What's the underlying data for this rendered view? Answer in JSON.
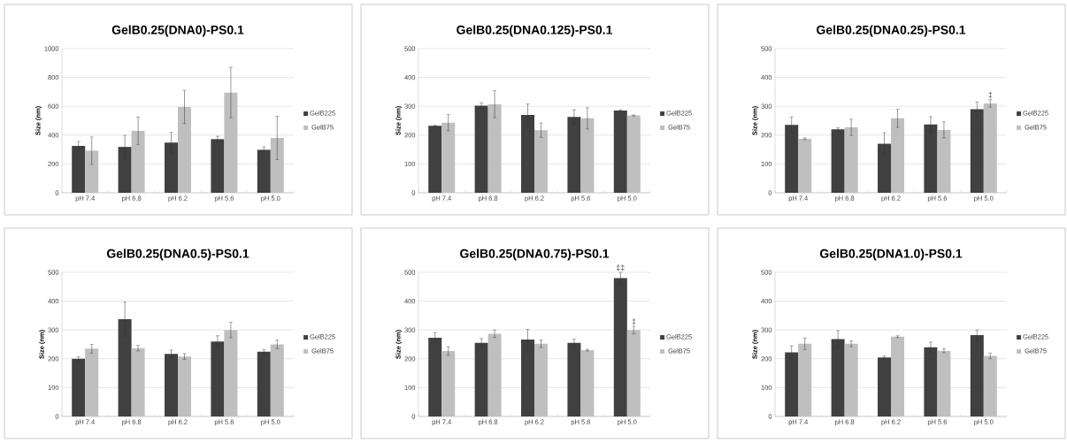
{
  "chart_data": [
    {
      "type": "bar",
      "title": "GelB0.25(DNA0)-PS0.1",
      "ylabel": "Size (nm)",
      "categories": [
        "pH 7.4",
        "pH 6.8",
        "pH 6.2",
        "pH 5.6",
        "pH 5.0"
      ],
      "ylim": [
        0,
        1000
      ],
      "yticks": [
        0,
        200,
        400,
        600,
        800,
        1000
      ],
      "grid": "y",
      "legend": "right",
      "series": [
        {
          "name": "GelB225",
          "color": "#404040",
          "values": [
            325,
            318,
            348,
            372,
            298
          ],
          "errors": [
            30,
            80,
            70,
            20,
            20
          ]
        },
        {
          "name": "GelB75",
          "color": "#bfbfbf",
          "values": [
            292,
            430,
            595,
            695,
            380
          ],
          "errors": [
            95,
            95,
            115,
            175,
            150
          ]
        }
      ]
    },
    {
      "type": "bar",
      "title": "GelB0.25(DNA0.125)-PS0.1",
      "ylabel": "Size (nm)",
      "categories": [
        "pH 7.4",
        "pH 6.8",
        "pH 6.2",
        "pH 5.6",
        "pH 5.0"
      ],
      "ylim": [
        0,
        500
      ],
      "yticks": [
        0,
        100,
        200,
        300,
        400,
        500
      ],
      "grid": "y",
      "legend": "right",
      "series": [
        {
          "name": "GelB225",
          "color": "#404040",
          "values": [
            232,
            302,
            270,
            263,
            285
          ],
          "errors": [
            2,
            10,
            38,
            25,
            3
          ]
        },
        {
          "name": "GelB75",
          "color": "#bfbfbf",
          "values": [
            243,
            307,
            217,
            258,
            268
          ],
          "errors": [
            28,
            47,
            25,
            37,
            2
          ]
        }
      ]
    },
    {
      "type": "bar",
      "title": "GelB0.25(DNA0.25)-PS0.1",
      "ylabel": "Size (nm)",
      "categories": [
        "pH 7.4",
        "pH 6.8",
        "pH 6.2",
        "pH 5.6",
        "pH 5.0"
      ],
      "ylim": [
        0,
        500
      ],
      "yticks": [
        0,
        100,
        200,
        300,
        400,
        500
      ],
      "grid": "y",
      "legend": "right",
      "series": [
        {
          "name": "GelB225",
          "color": "#404040",
          "values": [
            235,
            220,
            170,
            237,
            290
          ],
          "errors": [
            28,
            5,
            38,
            27,
            25
          ]
        },
        {
          "name": "GelB75",
          "color": "#bfbfbf",
          "values": [
            187,
            227,
            258,
            218,
            310
          ],
          "errors": [
            3,
            28,
            31,
            28,
            13
          ]
        }
      ],
      "annotations": [
        {
          "text": "‡",
          "x": "pH 5.0",
          "y": 310
        }
      ]
    },
    {
      "type": "bar",
      "title": "GelB0.25(DNA0.5)-PS0.1",
      "ylabel": "Size (nm)",
      "categories": [
        "pH 7.4",
        "pH 6.8",
        "pH 6.2",
        "pH 5.6",
        "pH 5.0"
      ],
      "ylim": [
        0,
        500
      ],
      "yticks": [
        0,
        100,
        200,
        300,
        400,
        500
      ],
      "grid": "y",
      "legend": "right",
      "series": [
        {
          "name": "GelB225",
          "color": "#404040",
          "values": [
            200,
            337,
            217,
            260,
            225
          ],
          "errors": [
            7,
            60,
            13,
            20,
            7
          ]
        },
        {
          "name": "GelB75",
          "color": "#bfbfbf",
          "values": [
            235,
            237,
            208,
            300,
            250
          ],
          "errors": [
            15,
            10,
            10,
            27,
            15
          ]
        }
      ]
    },
    {
      "type": "bar",
      "title": "GelB0.25(DNA0.75)-PS0.1",
      "ylabel": "Size (nm)",
      "categories": [
        "pH 7.4",
        "pH 6.8",
        "pH 6.2",
        "pH 5.6",
        "pH 5.0"
      ],
      "ylim": [
        0,
        500
      ],
      "yticks": [
        0,
        100,
        200,
        300,
        400,
        500
      ],
      "grid": "y",
      "legend": "right",
      "series": [
        {
          "name": "GelB225",
          "color": "#404040",
          "values": [
            273,
            255,
            267,
            255,
            480
          ],
          "errors": [
            18,
            15,
            35,
            13,
            20
          ]
        },
        {
          "name": "GelB75",
          "color": "#bfbfbf",
          "values": [
            227,
            287,
            252,
            230,
            300
          ],
          "errors": [
            15,
            13,
            13,
            3,
            13
          ]
        }
      ],
      "annotations": [
        {
          "text": "‡‡",
          "x": "pH 5.0",
          "y": 480
        },
        {
          "text": "‡",
          "x": "pH 5.0",
          "y": 300
        }
      ]
    },
    {
      "type": "bar",
      "title": "GelB0.25(DNA1.0)-PS0.1",
      "ylabel": "Size (nm)",
      "categories": [
        "pH 7.4",
        "pH 6.8",
        "pH 6.2",
        "pH 5.6",
        "pH 5.0"
      ],
      "ylim": [
        0,
        500
      ],
      "yticks": [
        0,
        100,
        200,
        300,
        400,
        500
      ],
      "grid": "y",
      "legend": "right",
      "series": [
        {
          "name": "GelB225",
          "color": "#404040",
          "values": [
            222,
            268,
            205,
            240,
            282
          ],
          "errors": [
            23,
            30,
            5,
            18,
            18
          ]
        },
        {
          "name": "GelB75",
          "color": "#bfbfbf",
          "values": [
            252,
            252,
            277,
            228,
            210
          ],
          "errors": [
            20,
            10,
            3,
            7,
            10
          ]
        }
      ]
    }
  ]
}
